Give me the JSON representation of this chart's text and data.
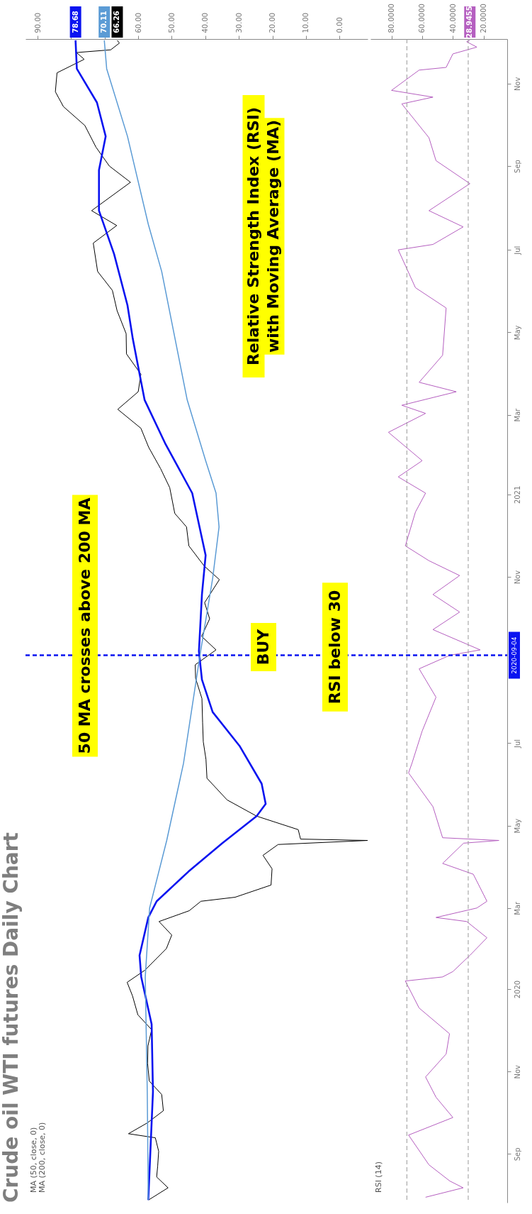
{
  "chart_data": [
    {
      "type": "line",
      "title": "Crude oil WTI futures Daily Chart",
      "orientation": "horizontal",
      "ylim": [
        "2019-07-27",
        "2021-12-04"
      ],
      "xlim": [
        93.6,
        -8.4
      ],
      "xticks": [
        {
          "value": 0,
          "label": "0.00"
        },
        {
          "value": 10,
          "label": "10.00"
        },
        {
          "value": 20,
          "label": "20.00"
        },
        {
          "value": 30,
          "label": "30.00"
        },
        {
          "value": 40,
          "label": "40.00"
        },
        {
          "value": 50,
          "label": "50.00"
        },
        {
          "value": 60,
          "label": "60.00"
        },
        {
          "value": 70,
          "label": null
        },
        {
          "value": 80,
          "label": null
        },
        {
          "value": 90,
          "label": "90.00"
        }
      ],
      "tick_labels": "x",
      "series": [
        {
          "color": "#000000",
          "x": [
            "2019-07-29",
            "2019-08-07",
            "2019-08-15",
            "2019-08-23",
            "2019-09-03",
            "2019-09-13",
            "2019-09-16",
            "2019-09-24",
            "2019-10-03",
            "2019-10-15",
            "2019-10-25",
            "2019-11-07",
            "2019-11-20",
            "2019-12-02",
            "2019-12-13",
            "2019-12-27",
            "2020-01-06",
            "2020-01-15",
            "2020-01-31",
            "2020-02-10",
            "2020-02-20",
            "2020-02-28",
            "2020-03-06",
            "2020-03-09",
            "2020-03-18",
            "2020-03-30",
            "2020-04-09",
            "2020-04-17",
            "2020-04-20",
            "2020-04-21",
            "2020-04-28",
            "2020-05-08",
            "2020-05-20",
            "2020-06-05",
            "2020-06-19",
            "2020-07-02",
            "2020-07-16",
            "2020-08-03",
            "2020-08-18",
            "2020-08-28",
            "2020-09-08",
            "2020-09-18",
            "2020-10-01",
            "2020-10-13",
            "2020-10-30",
            "2020-11-09",
            "2020-11-24",
            "2020-12-08",
            "2020-12-18",
            "2021-01-06",
            "2021-01-20",
            "2021-02-05",
            "2021-02-19",
            "2021-03-05",
            "2021-03-18",
            "2021-03-31",
            "2021-04-15",
            "2021-04-30",
            "2021-05-17",
            "2021-06-01",
            "2021-06-15",
            "2021-07-06",
            "2021-07-19",
            "2021-07-30",
            "2021-08-20",
            "2021-09-01",
            "2021-09-15",
            "2021-10-01",
            "2021-10-15",
            "2021-10-26",
            "2021-11-09",
            "2021-11-19",
            "2021-11-24",
            "2021-11-26",
            "2021-12-01",
            "2021-12-03"
          ],
          "values": [
            56.9,
            51.1,
            54.5,
            54.2,
            53.9,
            54.9,
            62.9,
            57.3,
            52.5,
            53.0,
            56.7,
            57.2,
            57.1,
            56.0,
            60.1,
            61.7,
            63.3,
            58.0,
            51.6,
            50.0,
            53.8,
            44.8,
            41.3,
            31.1,
            20.4,
            20.1,
            22.8,
            18.3,
            -8.4,
            11.6,
            12.3,
            24.7,
            33.5,
            39.5,
            39.8,
            40.6,
            40.8,
            41.0,
            42.9,
            43.0,
            36.8,
            41.1,
            38.7,
            40.2,
            35.8,
            40.3,
            44.9,
            45.6,
            49.1,
            50.6,
            53.3,
            56.9,
            59.2,
            66.1,
            60.0,
            59.2,
            63.5,
            63.6,
            66.3,
            67.7,
            72.1,
            73.4,
            66.4,
            73.9,
            62.3,
            68.6,
            72.6,
            75.9,
            82.3,
            84.7,
            84.2,
            76.1,
            78.4,
            68.2,
            65.6,
            66.26
          ],
          "value_labels": [
            null,
            null,
            null,
            null,
            null,
            null,
            null,
            null,
            null,
            null,
            null,
            null,
            null,
            null,
            null,
            null,
            null,
            null,
            null,
            null,
            null,
            null,
            null,
            null,
            null,
            null,
            null,
            null,
            null,
            null,
            null,
            null,
            null,
            null,
            null,
            null,
            null,
            null,
            null,
            null,
            null,
            null,
            null,
            null,
            null,
            null,
            null,
            null,
            null,
            null,
            null,
            null,
            null,
            null,
            null,
            null,
            null,
            null,
            null,
            null,
            null,
            null,
            null,
            null,
            null,
            null,
            null,
            null,
            null,
            null,
            null,
            null,
            null,
            null,
            null,
            "66.26"
          ]
        },
        {
          "color": "#0a14f0",
          "x": [
            "2019-07-29",
            "2019-10-17",
            "2019-12-06",
            "2020-01-10",
            "2020-01-26",
            "2020-02-23",
            "2020-03-06",
            "2020-03-28",
            "2020-04-18",
            "2020-05-08",
            "2020-05-17",
            "2020-06-01",
            "2020-06-29",
            "2020-07-24",
            "2020-08-17",
            "2020-09-07",
            "2020-10-19",
            "2020-11-17",
            "2021-01-02",
            "2021-02-08",
            "2021-03-12",
            "2021-04-26",
            "2021-05-21",
            "2021-06-28",
            "2021-07-30",
            "2021-08-29",
            "2021-09-23",
            "2021-10-18",
            "2021-11-12",
            "2021-12-03"
          ],
          "values": [
            57.0,
            55.6,
            56.0,
            59.1,
            59.6,
            57.0,
            54.5,
            45.0,
            34.9,
            24.7,
            22.0,
            23.2,
            29.8,
            37.8,
            41.0,
            41.9,
            41.0,
            39.9,
            43.9,
            52.0,
            58.1,
            61.6,
            63.2,
            67.2,
            71.7,
            71.7,
            69.7,
            72.3,
            78.3,
            78.68
          ],
          "value_labels": [
            null,
            null,
            null,
            null,
            null,
            null,
            null,
            null,
            null,
            null,
            null,
            null,
            null,
            null,
            null,
            null,
            null,
            null,
            null,
            null,
            null,
            null,
            null,
            null,
            null,
            null,
            null,
            null,
            null,
            "78.68"
          ]
        },
        {
          "color": "#5b9bd5",
          "x": [
            "2019-07-29",
            "2019-10-17",
            "2020-01-10",
            "2020-03-01",
            "2020-04-20",
            "2020-06-16",
            "2020-09-07",
            "2020-10-31",
            "2020-12-08",
            "2021-01-02",
            "2021-01-26",
            "2021-03-12",
            "2021-06-15",
            "2021-07-20",
            "2021-09-23",
            "2021-11-12",
            "2021-12-03"
          ],
          "values": [
            57.0,
            57.3,
            57.9,
            56.6,
            51.5,
            46.5,
            41.4,
            37.8,
            35.9,
            36.8,
            39.9,
            45.4,
            53.0,
            57.0,
            63.2,
            69.4,
            70.11
          ],
          "value_labels": [
            null,
            null,
            null,
            null,
            null,
            null,
            null,
            null,
            null,
            null,
            null,
            null,
            null,
            null,
            null,
            null,
            "70.11"
          ]
        }
      ],
      "ref_lines": [
        {
          "axis": "y",
          "value": "2020-09-04",
          "color": "#0a14f0",
          "line_style": "dashed"
        }
      ],
      "annotations": [
        "MA (50, close, 0)",
        "MA (200, close, 0)",
        "50 MA crosses above 200 MA",
        "BUY",
        "RSI below 30",
        "Relative Strength Index (RSI)\nwith Moving Average (MA)"
      ]
    },
    {
      "type": "line",
      "orientation": "horizontal",
      "ylim": [
        "2019-07-27",
        "2021-12-04"
      ],
      "yticks": [
        {
          "value": "2019-09-01",
          "label": "Sep"
        },
        {
          "value": "2019-11-01",
          "label": "Nov"
        },
        {
          "value": "2020-01-01",
          "label": "2020"
        },
        {
          "value": "2020-03-01",
          "label": "Mar"
        },
        {
          "value": "2020-05-01",
          "label": "May"
        },
        {
          "value": "2020-07-01",
          "label": "Jul"
        },
        {
          "value": "2020-11-01",
          "label": "Nov"
        },
        {
          "value": "2021-01-01",
          "label": "2021"
        },
        {
          "value": "2021-03-01",
          "label": "Mar"
        },
        {
          "value": "2021-05-01",
          "label": "May"
        },
        {
          "value": "2021-07-01",
          "label": "Jul"
        },
        {
          "value": "2021-09-01",
          "label": "Sep"
        },
        {
          "value": "2021-11-01",
          "label": "Nov"
        }
      ],
      "xlim": [
        93.7,
        4.6
      ],
      "xticks": [
        {
          "value": 20,
          "label": "20.0000"
        },
        {
          "value": 40,
          "label": "40.0000"
        },
        {
          "value": 60,
          "label": "60.0000"
        },
        {
          "value": 80,
          "label": "80.0000"
        }
      ],
      "series": [
        {
          "color": "#b55fc0",
          "x": [
            "2019-07-31",
            "2019-08-07",
            "2019-08-12",
            "2019-08-24",
            "2019-09-15",
            "2019-09-28",
            "2019-10-13",
            "2019-10-28",
            "2019-11-14",
            "2019-11-29",
            "2019-12-18",
            "2020-01-07",
            "2020-01-10",
            "2020-01-14",
            "2020-01-26",
            "2020-02-08",
            "2020-02-20",
            "2020-02-23",
            "2020-03-01",
            "2020-03-06",
            "2020-03-26",
            "2020-04-03",
            "2020-04-18",
            "2020-04-20",
            "2020-04-22",
            "2020-05-15",
            "2020-06-09",
            "2020-06-16",
            "2020-07-10",
            "2020-08-04",
            "2020-08-25",
            "2020-09-04",
            "2020-09-08",
            "2020-09-23",
            "2020-10-06",
            "2020-10-19",
            "2020-11-02",
            "2020-11-13",
            "2020-11-24",
            "2020-12-19",
            "2021-01-02",
            "2021-01-14",
            "2021-01-26",
            "2021-02-16",
            "2021-03-02",
            "2021-03-08",
            "2021-03-18",
            "2021-03-25",
            "2021-04-14",
            "2021-05-19",
            "2021-06-03",
            "2021-07-01",
            "2021-07-05",
            "2021-07-18",
            "2021-07-30",
            "2021-08-19",
            "2021-09-05",
            "2021-09-22",
            "2021-10-17",
            "2021-10-22",
            "2021-10-27",
            "2021-11-11",
            "2021-11-13",
            "2021-11-23",
            "2021-11-28",
            "2021-12-02",
            "2021-12-03"
          ],
          "values": [
            57.8,
            33.3,
            42.0,
            55.6,
            68.9,
            40.0,
            51.0,
            57.8,
            44.4,
            42.2,
            62.0,
            71.0,
            46.7,
            40.0,
            28.9,
            17.8,
            31.0,
            51.0,
            24.4,
            17.8,
            26.7,
            46.7,
            33.0,
            10.0,
            46.7,
            53.0,
            68.9,
            66.7,
            60.0,
            51.0,
            62.0,
            42.0,
            22.2,
            53.0,
            35.6,
            53.0,
            35.6,
            55.6,
            71.0,
            64.4,
            57.8,
            75.6,
            60.0,
            82.0,
            57.8,
            73.3,
            37.8,
            62.0,
            46.7,
            44.4,
            64.4,
            75.6,
            53.0,
            33.3,
            55.6,
            28.9,
            51.0,
            55.6,
            73.3,
            53.0,
            80.0,
            62.0,
            44.4,
            40.0,
            24.4,
            31.0,
            28.9455
          ],
          "value_labels": [
            null,
            null,
            null,
            null,
            null,
            null,
            null,
            null,
            null,
            null,
            null,
            null,
            null,
            null,
            null,
            null,
            null,
            null,
            null,
            null,
            null,
            null,
            null,
            null,
            null,
            null,
            null,
            null,
            null,
            null,
            null,
            null,
            null,
            null,
            null,
            null,
            null,
            null,
            null,
            null,
            null,
            null,
            null,
            null,
            null,
            null,
            null,
            null,
            null,
            null,
            null,
            null,
            null,
            null,
            null,
            null,
            null,
            null,
            null,
            null,
            null,
            null,
            null,
            null,
            null,
            null,
            "28.9455"
          ]
        }
      ],
      "ref_lines": [
        {
          "axis": "y",
          "value": "2020-09-04",
          "label": "2020-09-04",
          "color": "#0a14f0",
          "line_style": "dashed"
        },
        {
          "axis": "x",
          "value": 70,
          "color": "#999999",
          "line_style": "dashed"
        },
        {
          "axis": "x",
          "value": 30,
          "color": "#999999",
          "line_style": "dashed"
        }
      ],
      "annotations": [
        "RSI (14)"
      ]
    }
  ]
}
